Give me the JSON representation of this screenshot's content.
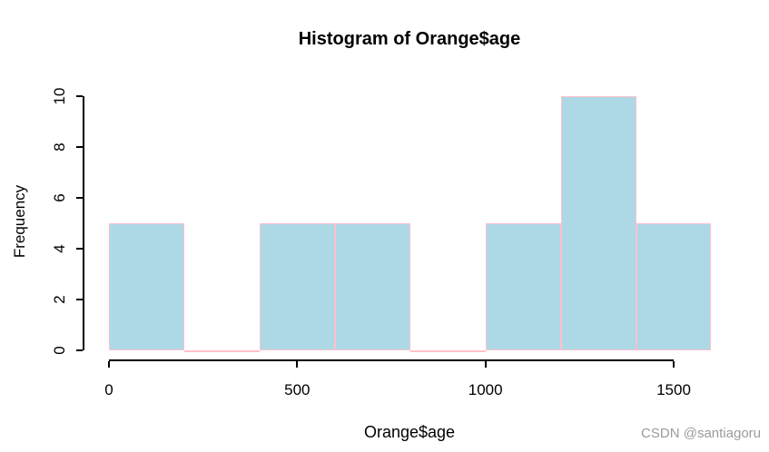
{
  "chart_data": {
    "type": "bar",
    "subtype": "histogram",
    "title": "Histogram of Orange$age",
    "xlabel": "Orange$age",
    "ylabel": "Frequency",
    "xlim": [
      0,
      1600
    ],
    "ylim": [
      0,
      10
    ],
    "bin_width": 200,
    "bins": [
      {
        "range": [
          0,
          200
        ],
        "count": 5
      },
      {
        "range": [
          200,
          400
        ],
        "count": 0
      },
      {
        "range": [
          400,
          600
        ],
        "count": 5
      },
      {
        "range": [
          600,
          800
        ],
        "count": 5
      },
      {
        "range": [
          800,
          1000
        ],
        "count": 0
      },
      {
        "range": [
          1000,
          1200
        ],
        "count": 5
      },
      {
        "range": [
          1200,
          1400
        ],
        "count": 10
      },
      {
        "range": [
          1400,
          1600
        ],
        "count": 5
      }
    ],
    "x_ticks": [
      "0",
      "500",
      "1000",
      "1500"
    ],
    "x_tick_values": [
      0,
      500,
      1000,
      1500
    ],
    "y_ticks": [
      "0",
      "2",
      "4",
      "6",
      "8",
      "10"
    ],
    "y_tick_values": [
      0,
      2,
      4,
      6,
      8,
      10
    ],
    "grid": false,
    "legend": "none"
  },
  "colors": {
    "bar_fill": "#ADD8E6",
    "bar_border": "#FFC0CB",
    "axis": "#000000",
    "text": "#000000",
    "watermark": "#9B9B9B",
    "background": "#FFFFFF"
  },
  "watermark": {
    "text": "CSDN @santiagoru"
  }
}
